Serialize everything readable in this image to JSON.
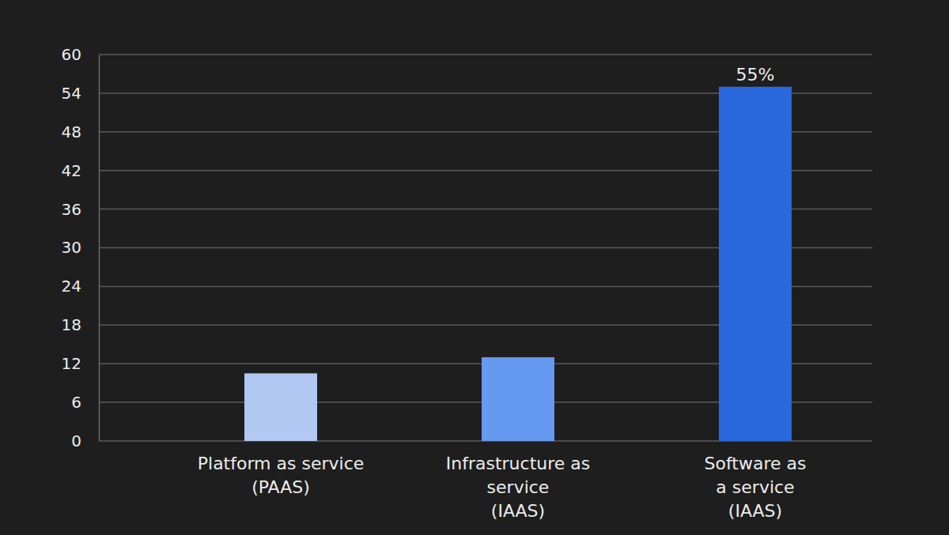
{
  "chart_data": {
    "type": "bar",
    "categories": [
      "Platform as service\n(PAAS)",
      "Infrastructure as\nservice\n(IAAS)",
      "Software as\na service\n(IAAS)"
    ],
    "values": [
      10.5,
      13,
      55
    ],
    "value_labels": [
      null,
      null,
      "55%"
    ],
    "colors": [
      "#b0c8f2",
      "#6699f0",
      "#2a69dd"
    ],
    "ylim": [
      0,
      60
    ],
    "yticks": [
      0,
      6,
      12,
      18,
      24,
      30,
      36,
      42,
      48,
      54,
      60
    ],
    "grid": true,
    "data_labels": true
  }
}
